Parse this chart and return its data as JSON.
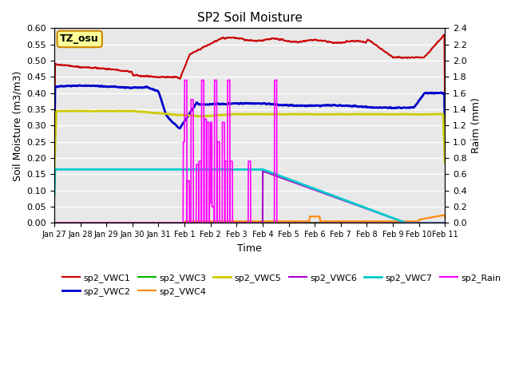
{
  "title": "SP2 Soil Moisture",
  "xlabel": "Time",
  "ylabel_left": "Soil Moisture (m3/m3)",
  "ylabel_right": "Raim (mm)",
  "annotation": "TZ_osu",
  "ylim_left": [
    0.0,
    0.6
  ],
  "ylim_right": [
    0.0,
    2.4
  ],
  "bg_color": "#e8e8e8",
  "xtick_labels": [
    "Jan 27",
    "Jan 28",
    "Jan 29",
    "Jan 30",
    "Jan 31",
    "Feb 1",
    "Feb 2",
    "Feb 3",
    "Feb 4",
    "Feb 5",
    "Feb 6",
    "Feb 7",
    "Feb 8",
    "Feb 9",
    "Feb 10",
    "Feb 11"
  ],
  "yticks_left": [
    0.0,
    0.05,
    0.1,
    0.15,
    0.2,
    0.25,
    0.3,
    0.35,
    0.4,
    0.45,
    0.5,
    0.55,
    0.6
  ],
  "yticks_right": [
    0.0,
    0.2,
    0.4,
    0.6,
    0.8,
    1.0,
    1.2,
    1.4,
    1.6,
    1.8,
    2.0,
    2.2,
    2.4
  ],
  "colors": {
    "vwc1": "#cc0000",
    "vwc2": "#0000cc",
    "vwc3": "#00bb00",
    "vwc4": "#ff8800",
    "vwc5": "#cccc00",
    "vwc6": "#aa00cc",
    "vwc7": "#00cccc",
    "rain": "#ff00ff"
  }
}
